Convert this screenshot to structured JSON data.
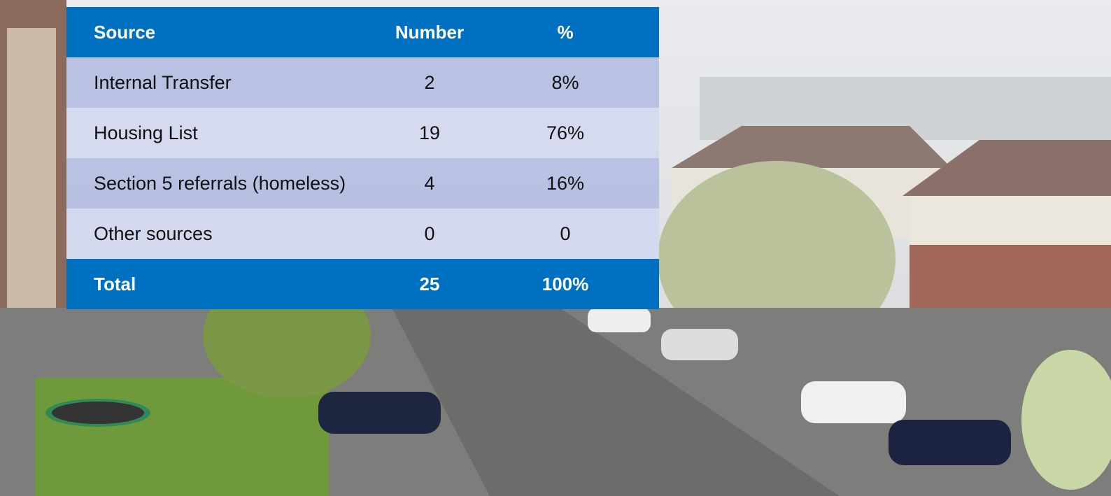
{
  "table": {
    "header": [
      "Source",
      "Number",
      "%"
    ],
    "rows": [
      [
        "Internal Transfer",
        "2",
        "8%"
      ],
      [
        "Housing List",
        "19",
        "76%"
      ],
      [
        "Section 5 referrals (homeless)",
        "4",
        "16%"
      ],
      [
        "Other sources",
        "0",
        "0"
      ]
    ],
    "total": [
      "Total",
      "25",
      "100%"
    ]
  }
}
